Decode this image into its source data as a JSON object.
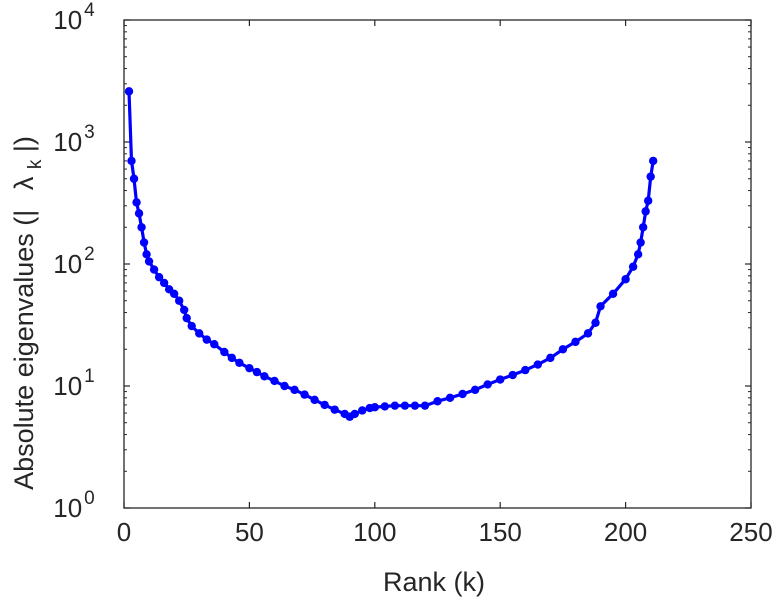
{
  "chart_data": {
    "type": "line",
    "title": "",
    "xlabel": "Rank (k)",
    "ylabel": {
      "text": "Absolute eigenvalues (|",
      "symbol": "λ",
      "subscript": "k",
      "close": "|)"
    },
    "xlim": [
      0,
      250
    ],
    "ylim": [
      1,
      10000
    ],
    "yscale": "log",
    "grid": false,
    "legend": "none",
    "xticks": [
      {
        "value": 0,
        "label": "0"
      },
      {
        "value": 50,
        "label": "50"
      },
      {
        "value": 100,
        "label": "100"
      },
      {
        "value": 150,
        "label": "150"
      },
      {
        "value": 200,
        "label": "200"
      },
      {
        "value": 250,
        "label": "250"
      }
    ],
    "yticks": [
      {
        "value": 1,
        "base": "10",
        "exp": "0"
      },
      {
        "value": 10,
        "base": "10",
        "exp": "1"
      },
      {
        "value": 100,
        "base": "10",
        "exp": "2"
      },
      {
        "value": 1000,
        "base": "10",
        "exp": "3"
      },
      {
        "value": 10000,
        "base": "10",
        "exp": "4"
      }
    ],
    "series": [
      {
        "color": "#0000ff",
        "marker": "circle",
        "x": [
          2,
          3,
          4,
          5,
          6,
          7,
          8,
          9,
          10,
          12,
          14,
          16,
          18,
          20,
          22,
          24,
          25,
          27,
          30,
          33,
          36,
          40,
          43,
          46,
          50,
          53,
          56,
          60,
          64,
          68,
          72,
          76,
          80,
          84,
          88,
          90,
          92,
          95,
          98,
          100,
          104,
          108,
          112,
          116,
          120,
          125,
          130,
          135,
          140,
          145,
          150,
          155,
          160,
          165,
          170,
          175,
          180,
          185,
          188,
          190,
          195,
          200,
          203,
          205,
          206,
          207,
          208,
          209,
          210,
          211
        ],
        "y": [
          2600,
          700,
          500,
          320,
          260,
          200,
          150,
          120,
          105,
          90,
          78,
          70,
          62,
          57,
          50,
          42,
          36,
          31,
          27,
          24,
          22,
          19,
          17,
          15.5,
          14,
          13,
          12,
          11,
          10,
          9.3,
          8.5,
          7.7,
          7.0,
          6.4,
          5.9,
          5.6,
          5.9,
          6.3,
          6.6,
          6.7,
          6.8,
          6.9,
          6.9,
          6.9,
          6.9,
          7.5,
          8.0,
          8.6,
          9.3,
          10.3,
          11.3,
          12.3,
          13.5,
          15.0,
          17.0,
          20.0,
          23.0,
          27.0,
          33.0,
          45.0,
          57.0,
          75.0,
          95.0,
          120.0,
          150.0,
          200.0,
          270.0,
          330.0,
          520.0,
          700.0
        ]
      }
    ]
  }
}
